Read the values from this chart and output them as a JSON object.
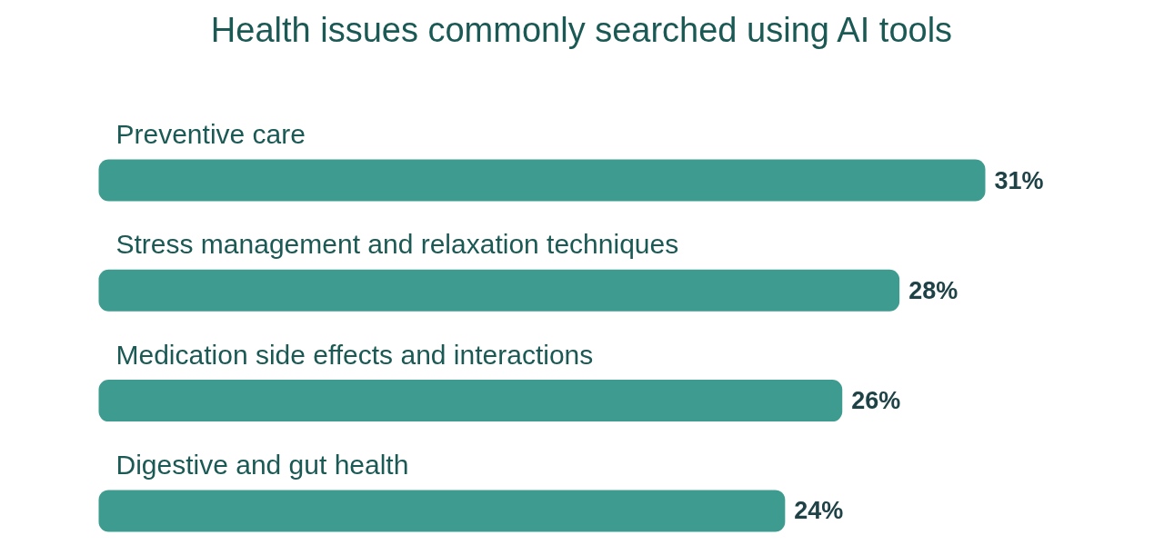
{
  "chart_data": {
    "type": "bar",
    "orientation": "horizontal",
    "title": "Health issues commonly searched using AI tools",
    "categories": [
      "Preventive care",
      "Stress management and relaxation techniques",
      "Medication side effects and interactions",
      "Digestive and gut health"
    ],
    "values": [
      31,
      28,
      26,
      24
    ],
    "color": "#3d9b90",
    "value_labels": [
      "31%",
      "28%",
      "26%",
      "24%"
    ]
  }
}
